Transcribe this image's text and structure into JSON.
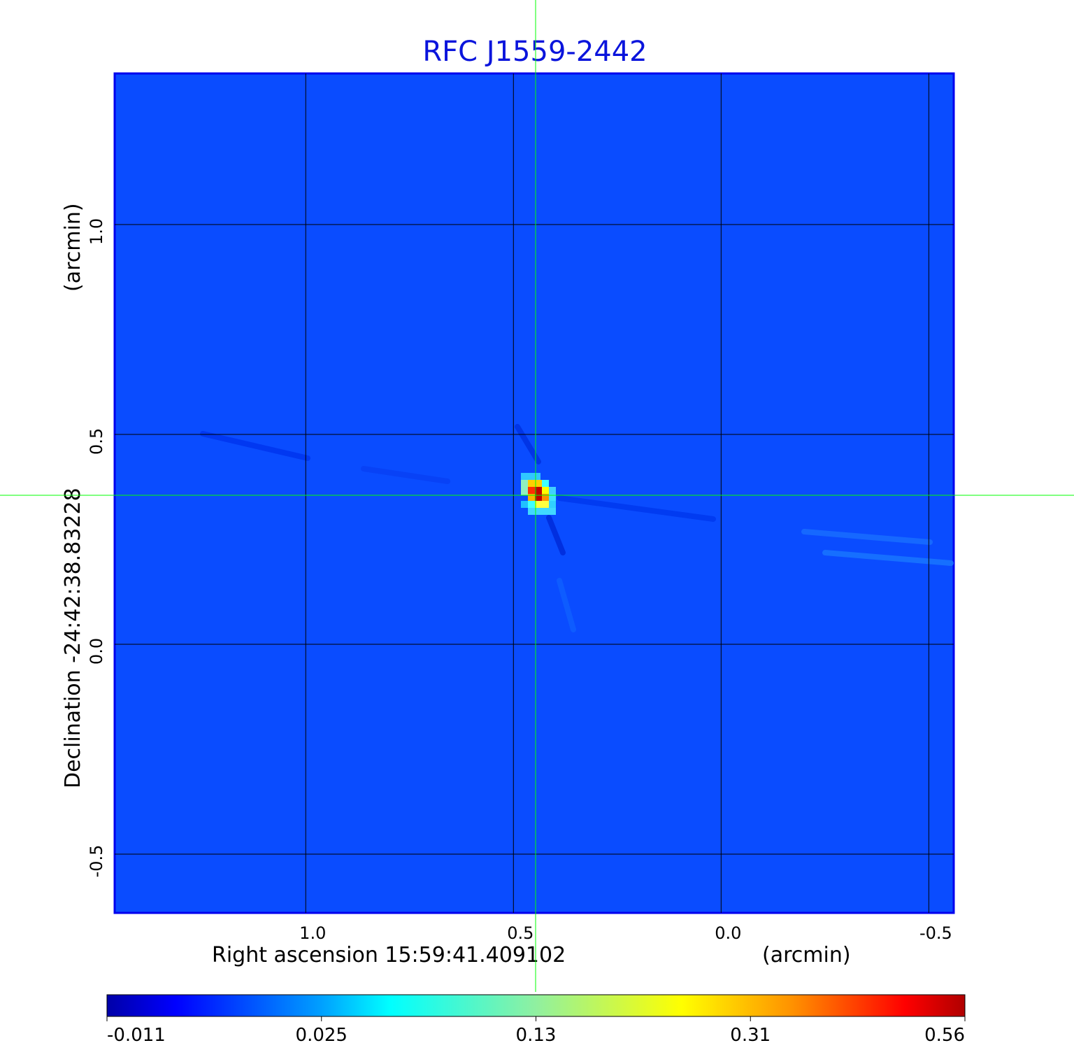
{
  "chart_data": {
    "type": "heatmap",
    "title": "RFC J1559-2442",
    "xlabel": "Right ascension  15:59:41.409102",
    "xunit": "(arcmin)",
    "ylabel": "Declination  -24:42:38.83228",
    "yunit": "(arcmin)",
    "xlim": [
      1.46,
      -0.56
    ],
    "ylim": [
      -0.64,
      1.36
    ],
    "x_ticks": [
      "1.0",
      "0.5",
      "0.0",
      "-0.5"
    ],
    "x_tick_values": [
      1.0,
      0.5,
      0.0,
      -0.5
    ],
    "y_ticks": [
      "1.0",
      "0.5",
      "0.0",
      "-0.5"
    ],
    "y_tick_values": [
      1.0,
      0.5,
      0.0,
      -0.5
    ],
    "grid": true,
    "crosshair": {
      "x": 0.445,
      "y": 0.35,
      "color": "#00ff00"
    },
    "colormap": "jet",
    "colorbar": {
      "placement": "bottom",
      "ticks": [
        "-0.011",
        "0.025",
        "0.13",
        "0.31",
        "0.56"
      ],
      "tick_values": [
        -0.011,
        0.025,
        0.13,
        0.31,
        0.56
      ]
    },
    "peak_value": 0.56,
    "background_color": "#0a4cff",
    "title_color": "#0a14dc"
  }
}
